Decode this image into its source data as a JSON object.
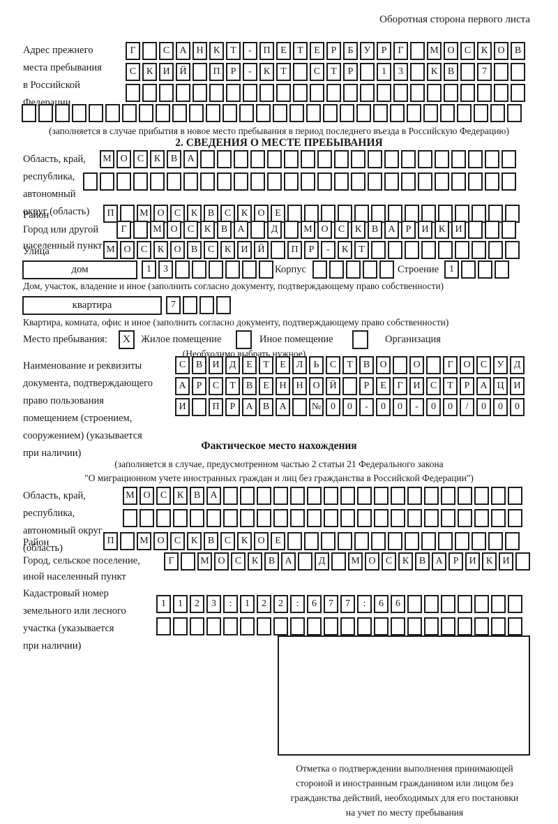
{
  "page_title": "Оборотная сторона первого листа",
  "section1": {
    "label": "Адрес прежнего\nместа пребывания\nв Российской\nФедерации",
    "r1": {
      "chars": "Г САНКТ-ПЕТЕРБУРГ МОСКОВ",
      "count": 24
    },
    "r2": {
      "chars": "СКИЙ ПР-КТ СТР 13 КВ 7",
      "count": 24
    },
    "r3": {
      "chars": "",
      "count": 24
    },
    "r4": {
      "chars": "",
      "count": 30
    },
    "note": "(заполняется в случае прибытия в новое место пребывания в период последнего въезда в Российскую Федерацию)"
  },
  "section2": {
    "header": "2. СВЕДЕНИЯ О МЕСТЕ ПРЕБЫВАНИЯ",
    "region": {
      "label": "Область, край,\nреспублика,\nавтономный\nокруг (область)",
      "r1": {
        "chars": "МОСКВА",
        "count": 25
      },
      "r2": {
        "chars": "",
        "count": 26
      }
    },
    "district": {
      "label": "Район",
      "grid": {
        "chars": "П МОСКВСКОЕ",
        "count": 25
      }
    },
    "city": {
      "label": "Город или другой\nнаселенный пункт",
      "grid": {
        "chars": "Г МОСКВА Д МОСКВАРИКИ",
        "count": 24
      }
    },
    "street": {
      "label": "Улица",
      "grid": {
        "chars": "МОСКОВСКИЙ ПР-КТ",
        "count": 25
      }
    },
    "house_row": {
      "house_label": "дом",
      "house_grid": {
        "chars": "13",
        "count": 8
      },
      "korpus_label": "Корпус",
      "korpus_grid": {
        "chars": "",
        "count": 5
      },
      "stroenie_label": "Строение",
      "stroenie_grid": {
        "chars": "1",
        "count": 4
      }
    },
    "house_caption": "Дом, участок, владение и иное (заполнить согласно документу, подтверждающему право собственности)",
    "apartment_row": {
      "label": "квартира",
      "grid": {
        "chars": "7",
        "count": 4
      }
    },
    "apartment_caption": "Квартира, комната, офис и иное (заполнить согласно документу, подтверждающему право собственности)",
    "stay_type": {
      "label": "Место пребывания:",
      "options": [
        {
          "label": "Жилое помещение",
          "mark": "X"
        },
        {
          "label": "Иное помещение",
          "mark": ""
        },
        {
          "label": "Организация",
          "mark": ""
        }
      ],
      "note": "(Необходимо выбрать нужное)"
    },
    "doc": {
      "label": "Наименование и реквизиты\nдокумента, подтверждающего\nправо пользования\nпомещением (строением,\nсооружением) (указывается\nпри наличии)",
      "r1": {
        "chars": "СВИДЕТЕЛЬСТВО О ГОСУД",
        "count": 21
      },
      "r2": {
        "chars": "АРСТВЕННОЙ РЕГИСТРАЦИ",
        "count": 21
      },
      "r3": {
        "chars": "И ПРАВА №00-00-00/000",
        "count": 21
      }
    }
  },
  "actual_location": {
    "header": "Фактическое место нахождения",
    "note": "(заполняется в случае, предусмотренном частью 2 статьи 21 Федерального закона\n\"О миграционном учете иностранных граждан и лиц без гражданства в Российской Федерации\")",
    "region": {
      "label": "Область, край,\nреспублика,\nавтономный округ\n(область)",
      "r1": {
        "chars": "МОСКВА",
        "count": 24
      },
      "r2": {
        "chars": "",
        "count": 24
      }
    },
    "district": {
      "label": "Район",
      "grid": {
        "chars": "П МОСКВСКОЕ",
        "count": 25
      }
    },
    "city": {
      "label": "Город, сельское поселение,\nиной населенный пункт",
      "grid": {
        "chars": "Г МОСКВА Д МОСКВАРИКИ",
        "count": 22
      }
    },
    "cadastre": {
      "label": "Кадастровый номер\nземельного или лесного\nучастка (указывается\nпри наличии)",
      "r1": {
        "chars": "1123:122:677:66",
        "count": 22
      },
      "r2": {
        "chars": "",
        "count": 22
      }
    },
    "stamp_caption": "Отметка о подтверждении выполнения принимающей\nстороной и иностранным гражданином или лицом без\nгражданства действий, необходимых для его постановки\nна учет по месту пребывания"
  }
}
